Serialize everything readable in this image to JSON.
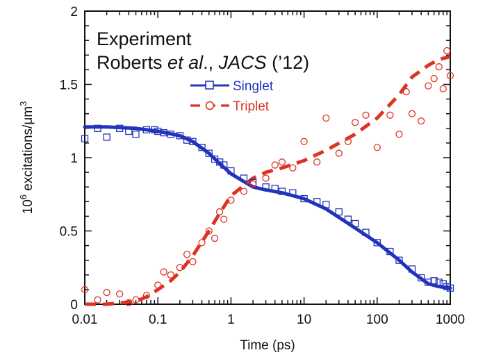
{
  "chart_data": {
    "type": "scatter",
    "xlabel": "Time (ps)",
    "ylabel_main": "10",
    "ylabel_sup": "6",
    "ylabel_rest": " excitations/μm",
    "ylabel_sup2": "3",
    "x_scale": "log",
    "xlim": [
      0.01,
      1000
    ],
    "ylim": [
      0,
      2
    ],
    "x_ticks": [
      0.01,
      0.1,
      1,
      10,
      100,
      1000
    ],
    "x_tick_labels": [
      "0.01",
      "0.1",
      "1",
      "10",
      "100",
      "1000"
    ],
    "y_ticks": [
      0,
      0.5,
      1,
      1.5,
      2
    ],
    "y_tick_labels": [
      "0",
      "0.5",
      "1",
      "1.5",
      "2"
    ],
    "grid": false,
    "legend_position": "top-center",
    "annotations": {
      "line1": "Experiment",
      "line2_a": "Roberts ",
      "line2_b": "et al",
      "line2_c": "., ",
      "line2_d": "JACS",
      "line2_e": " (’12)"
    },
    "series": [
      {
        "name": "Singlet",
        "color": "#2233bb",
        "marker": "square",
        "fit_line": {
          "x": [
            0.01,
            0.02,
            0.05,
            0.1,
            0.2,
            0.3,
            0.5,
            0.7,
            1,
            2,
            3,
            5,
            10,
            20,
            50,
            100,
            200,
            300,
            500,
            700,
            1000
          ],
          "y": [
            1.21,
            1.21,
            1.2,
            1.18,
            1.15,
            1.11,
            1.03,
            0.96,
            0.89,
            0.8,
            0.78,
            0.76,
            0.72,
            0.65,
            0.52,
            0.42,
            0.3,
            0.22,
            0.14,
            0.12,
            0.11
          ]
        },
        "x": [
          0.01,
          0.015,
          0.02,
          0.03,
          0.04,
          0.05,
          0.07,
          0.09,
          0.1,
          0.12,
          0.15,
          0.2,
          0.25,
          0.3,
          0.4,
          0.5,
          0.6,
          0.7,
          0.8,
          1,
          1.5,
          2,
          3,
          4,
          5,
          7,
          10,
          15,
          20,
          30,
          40,
          50,
          70,
          100,
          150,
          200,
          300,
          400,
          500,
          600,
          700,
          800,
          900,
          1000
        ],
        "y": [
          1.13,
          1.2,
          1.14,
          1.2,
          1.18,
          1.16,
          1.19,
          1.19,
          1.18,
          1.17,
          1.16,
          1.15,
          1.12,
          1.11,
          1.07,
          1.03,
          0.99,
          0.97,
          0.95,
          0.91,
          0.86,
          0.83,
          0.8,
          0.79,
          0.77,
          0.76,
          0.72,
          0.7,
          0.68,
          0.63,
          0.58,
          0.55,
          0.49,
          0.42,
          0.36,
          0.3,
          0.24,
          0.18,
          0.15,
          0.16,
          0.15,
          0.14,
          0.12,
          0.11
        ]
      },
      {
        "name": "Triplet",
        "color": "#dd3322",
        "marker": "circle",
        "fit_line": {
          "x": [
            0.01,
            0.02,
            0.05,
            0.07,
            0.1,
            0.15,
            0.2,
            0.3,
            0.5,
            0.7,
            1,
            2,
            3,
            5,
            10,
            20,
            50,
            100,
            200,
            300,
            500,
            700,
            1000
          ],
          "y": [
            0.0,
            0.0,
            0.02,
            0.05,
            0.1,
            0.16,
            0.22,
            0.33,
            0.5,
            0.62,
            0.74,
            0.86,
            0.9,
            0.93,
            0.98,
            1.05,
            1.16,
            1.27,
            1.43,
            1.55,
            1.63,
            1.67,
            1.69
          ]
        },
        "x": [
          0.01,
          0.015,
          0.02,
          0.03,
          0.04,
          0.05,
          0.07,
          0.1,
          0.12,
          0.15,
          0.2,
          0.25,
          0.3,
          0.4,
          0.5,
          0.6,
          0.7,
          0.8,
          1,
          1.5,
          2,
          3,
          4,
          5,
          7,
          10,
          15,
          20,
          30,
          40,
          50,
          70,
          100,
          150,
          200,
          250,
          300,
          400,
          500,
          600,
          700,
          800,
          900,
          1000
        ],
        "y": [
          0.1,
          0.03,
          0.08,
          0.07,
          0.01,
          0.03,
          0.06,
          0.13,
          0.22,
          0.2,
          0.25,
          0.34,
          0.29,
          0.42,
          0.5,
          0.45,
          0.63,
          0.58,
          0.71,
          0.77,
          0.82,
          0.86,
          0.95,
          0.97,
          0.93,
          1.11,
          0.97,
          1.27,
          1.03,
          1.11,
          1.24,
          1.29,
          1.07,
          1.29,
          1.16,
          1.45,
          1.3,
          1.25,
          1.49,
          1.54,
          1.62,
          1.47,
          1.73,
          1.56
        ]
      }
    ]
  }
}
